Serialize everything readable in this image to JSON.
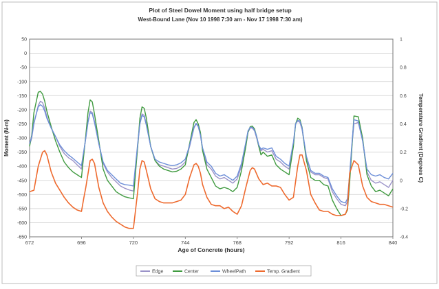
{
  "chart_data": {
    "type": "line",
    "title": "Plot of Steel Dowel Moment using half bridge setup",
    "subtitle": "West-Bound Lane (Nov 10 1998 7:30 am - Nov 17 1998 7:30 am)",
    "xlabel": "Age of Concrete (hours)",
    "ylabel": "Moment (N-m)",
    "y2label": "Temperature Gradient (Degrees C)",
    "xlim": [
      672,
      840
    ],
    "ylim": [
      -650,
      50
    ],
    "y2lim": [
      -0.4,
      1
    ],
    "x_ticks": [
      "672",
      "696",
      "720",
      "744",
      "768",
      "792",
      "816",
      "840"
    ],
    "y_ticks": [
      "50",
      "0",
      "-50",
      "-100",
      "-150",
      "-200",
      "-250",
      "-300",
      "-350",
      "-400",
      "-450",
      "-500",
      "-550",
      "-600",
      "-650"
    ],
    "y2_ticks": [
      "1",
      "0.8",
      "0.6",
      "0.4",
      "0.2",
      "0",
      "-0.2",
      "-0.4"
    ],
    "grid": true,
    "legend": "bottom",
    "series": [
      {
        "name": "Edge",
        "axis": "left",
        "color": "#9a92c8",
        "x": [
          672,
          673,
          674,
          676,
          677,
          678,
          679,
          680,
          682,
          684,
          686,
          688,
          690,
          692,
          694,
          696,
          698,
          699,
          700,
          701,
          702,
          704,
          706,
          708,
          710,
          712,
          714,
          716,
          718,
          720,
          722,
          723,
          724,
          725,
          726,
          728,
          730,
          732,
          734,
          736,
          738,
          740,
          742,
          744,
          746,
          748,
          749,
          750,
          751,
          752,
          754,
          756,
          758,
          760,
          762,
          764,
          766,
          768,
          770,
          772,
          773,
          774,
          775,
          776,
          777,
          778,
          779,
          780,
          782,
          784,
          786,
          788,
          790,
          792,
          794,
          795,
          796,
          797,
          798,
          800,
          802,
          804,
          806,
          808,
          810,
          812,
          814,
          816,
          818,
          819,
          820,
          821,
          822,
          824,
          826,
          828,
          830,
          832,
          834,
          836,
          838,
          840
        ],
        "y": [
          -325,
          -300,
          -250,
          -185,
          -170,
          -175,
          -195,
          -225,
          -265,
          -295,
          -330,
          -355,
          -370,
          -380,
          -395,
          -410,
          -300,
          -240,
          -205,
          -210,
          -240,
          -320,
          -390,
          -420,
          -440,
          -455,
          -470,
          -478,
          -484,
          -488,
          -330,
          -250,
          -215,
          -220,
          -250,
          -330,
          -380,
          -395,
          -400,
          -405,
          -410,
          -408,
          -400,
          -385,
          -330,
          -265,
          -250,
          -260,
          -290,
          -340,
          -395,
          -410,
          -435,
          -445,
          -440,
          -450,
          -460,
          -445,
          -400,
          -320,
          -280,
          -265,
          -265,
          -275,
          -300,
          -330,
          -345,
          -340,
          -350,
          -345,
          -375,
          -385,
          -400,
          -410,
          -320,
          -250,
          -240,
          -245,
          -270,
          -370,
          -420,
          -430,
          -430,
          -440,
          -445,
          -490,
          -515,
          -535,
          -540,
          -525,
          -440,
          -330,
          -250,
          -245,
          -310,
          -420,
          -450,
          -460,
          -455,
          -465,
          -475,
          -450
        ]
      },
      {
        "name": "Center",
        "axis": "left",
        "color": "#3f9a3f",
        "x": [
          672,
          673,
          674,
          676,
          677,
          678,
          679,
          680,
          682,
          684,
          686,
          688,
          690,
          692,
          694,
          696,
          698,
          699,
          700,
          701,
          702,
          704,
          706,
          708,
          710,
          712,
          714,
          716,
          718,
          720,
          722,
          723,
          724,
          725,
          726,
          728,
          730,
          732,
          734,
          736,
          738,
          740,
          742,
          744,
          746,
          748,
          749,
          750,
          751,
          752,
          754,
          756,
          758,
          760,
          762,
          764,
          766,
          768,
          770,
          772,
          773,
          774,
          775,
          776,
          777,
          778,
          779,
          780,
          782,
          784,
          786,
          788,
          790,
          792,
          794,
          795,
          796,
          797,
          798,
          800,
          802,
          804,
          806,
          808,
          810,
          812,
          814,
          816,
          818,
          819,
          820,
          821,
          822,
          824,
          826,
          828,
          830,
          832,
          834,
          836,
          838,
          840
        ],
        "y": [
          -330,
          -290,
          -210,
          -138,
          -135,
          -145,
          -170,
          -205,
          -260,
          -310,
          -350,
          -385,
          -405,
          -420,
          -430,
          -440,
          -290,
          -210,
          -165,
          -172,
          -215,
          -310,
          -410,
          -450,
          -470,
          -490,
          -500,
          -508,
          -512,
          -515,
          -330,
          -230,
          -190,
          -195,
          -230,
          -330,
          -380,
          -400,
          -410,
          -415,
          -420,
          -418,
          -410,
          -395,
          -320,
          -245,
          -235,
          -250,
          -280,
          -345,
          -410,
          -440,
          -470,
          -480,
          -475,
          -480,
          -490,
          -475,
          -415,
          -330,
          -280,
          -260,
          -258,
          -268,
          -295,
          -330,
          -360,
          -350,
          -365,
          -360,
          -395,
          -410,
          -420,
          -430,
          -330,
          -250,
          -230,
          -235,
          -262,
          -380,
          -440,
          -450,
          -450,
          -465,
          -470,
          -520,
          -550,
          -575,
          -570,
          -555,
          -460,
          -340,
          -222,
          -225,
          -300,
          -430,
          -470,
          -490,
          -485,
          -495,
          -505,
          -480
        ]
      },
      {
        "name": "WheelPath",
        "axis": "left",
        "color": "#6c8ed8",
        "x": [
          672,
          673,
          674,
          676,
          677,
          678,
          679,
          680,
          682,
          684,
          686,
          688,
          690,
          692,
          694,
          696,
          698,
          699,
          700,
          701,
          702,
          704,
          706,
          708,
          710,
          712,
          714,
          716,
          718,
          720,
          722,
          723,
          724,
          725,
          726,
          728,
          730,
          732,
          734,
          736,
          738,
          740,
          742,
          744,
          746,
          748,
          749,
          750,
          751,
          752,
          754,
          756,
          758,
          760,
          762,
          764,
          766,
          768,
          770,
          772,
          773,
          774,
          775,
          776,
          777,
          778,
          779,
          780,
          782,
          784,
          786,
          788,
          790,
          792,
          794,
          795,
          796,
          797,
          798,
          800,
          802,
          804,
          806,
          808,
          810,
          812,
          814,
          816,
          818,
          819,
          820,
          821,
          822,
          824,
          826,
          828,
          830,
          832,
          834,
          836,
          838,
          840
        ],
        "y": [
          -320,
          -295,
          -245,
          -190,
          -182,
          -188,
          -205,
          -230,
          -265,
          -295,
          -325,
          -345,
          -360,
          -372,
          -385,
          -398,
          -300,
          -245,
          -210,
          -215,
          -245,
          -320,
          -385,
          -415,
          -430,
          -445,
          -460,
          -465,
          -467,
          -470,
          -320,
          -250,
          -220,
          -225,
          -255,
          -330,
          -375,
          -385,
          -390,
          -395,
          -398,
          -395,
          -388,
          -375,
          -325,
          -262,
          -248,
          -258,
          -290,
          -335,
          -385,
          -400,
          -425,
          -435,
          -430,
          -440,
          -450,
          -435,
          -390,
          -315,
          -275,
          -262,
          -262,
          -272,
          -295,
          -325,
          -340,
          -335,
          -340,
          -335,
          -365,
          -375,
          -390,
          -400,
          -315,
          -250,
          -238,
          -240,
          -265,
          -365,
          -415,
          -425,
          -425,
          -435,
          -440,
          -480,
          -505,
          -525,
          -530,
          -515,
          -430,
          -325,
          -235,
          -240,
          -310,
          -410,
          -430,
          -435,
          -430,
          -440,
          -445,
          -425
        ]
      },
      {
        "name": "Temp. Gradient",
        "axis": "right",
        "color": "#ee6a2e",
        "x": [
          672,
          674,
          676,
          678,
          679,
          680,
          682,
          684,
          686,
          688,
          690,
          692,
          694,
          696,
          697,
          698,
          700,
          701,
          702,
          704,
          706,
          708,
          710,
          712,
          714,
          716,
          718,
          720,
          722,
          723,
          724,
          725,
          726,
          728,
          730,
          732,
          734,
          736,
          738,
          740,
          742,
          744,
          746,
          748,
          749,
          750,
          751,
          752,
          754,
          756,
          758,
          760,
          762,
          764,
          766,
          768,
          770,
          772,
          774,
          775,
          776,
          778,
          780,
          782,
          784,
          786,
          788,
          790,
          792,
          794,
          796,
          797,
          798,
          800,
          802,
          804,
          806,
          808,
          810,
          812,
          814,
          816,
          818,
          819,
          820,
          822,
          824,
          826,
          828,
          830,
          832,
          834,
          836,
          838,
          840
        ],
        "y": [
          -0.08,
          -0.07,
          0.1,
          0.2,
          0.21,
          0.18,
          0.06,
          -0.02,
          -0.07,
          -0.12,
          -0.16,
          -0.19,
          -0.21,
          -0.22,
          -0.13,
          -0.05,
          0.14,
          0.15,
          0.12,
          -0.05,
          -0.16,
          -0.22,
          -0.26,
          -0.29,
          -0.31,
          -0.33,
          -0.34,
          -0.34,
          -0.08,
          0.08,
          0.14,
          0.13,
          0.07,
          -0.06,
          -0.13,
          -0.15,
          -0.16,
          -0.16,
          -0.16,
          -0.15,
          -0.14,
          -0.1,
          0.02,
          0.11,
          0.12,
          0.1,
          0.05,
          -0.03,
          -0.12,
          -0.17,
          -0.18,
          -0.18,
          -0.2,
          -0.19,
          -0.22,
          -0.24,
          -0.18,
          -0.05,
          0.07,
          0.09,
          0.08,
          0.01,
          -0.03,
          -0.02,
          -0.04,
          -0.04,
          -0.05,
          -0.1,
          -0.14,
          -0.12,
          0.1,
          0.18,
          0.18,
          0.07,
          -0.1,
          -0.16,
          -0.21,
          -0.22,
          -0.22,
          -0.24,
          -0.25,
          -0.25,
          -0.24,
          -0.2,
          0.05,
          0.14,
          0.11,
          -0.04,
          -0.12,
          -0.15,
          -0.16,
          -0.17,
          -0.17,
          -0.18,
          -0.19
        ]
      }
    ]
  }
}
